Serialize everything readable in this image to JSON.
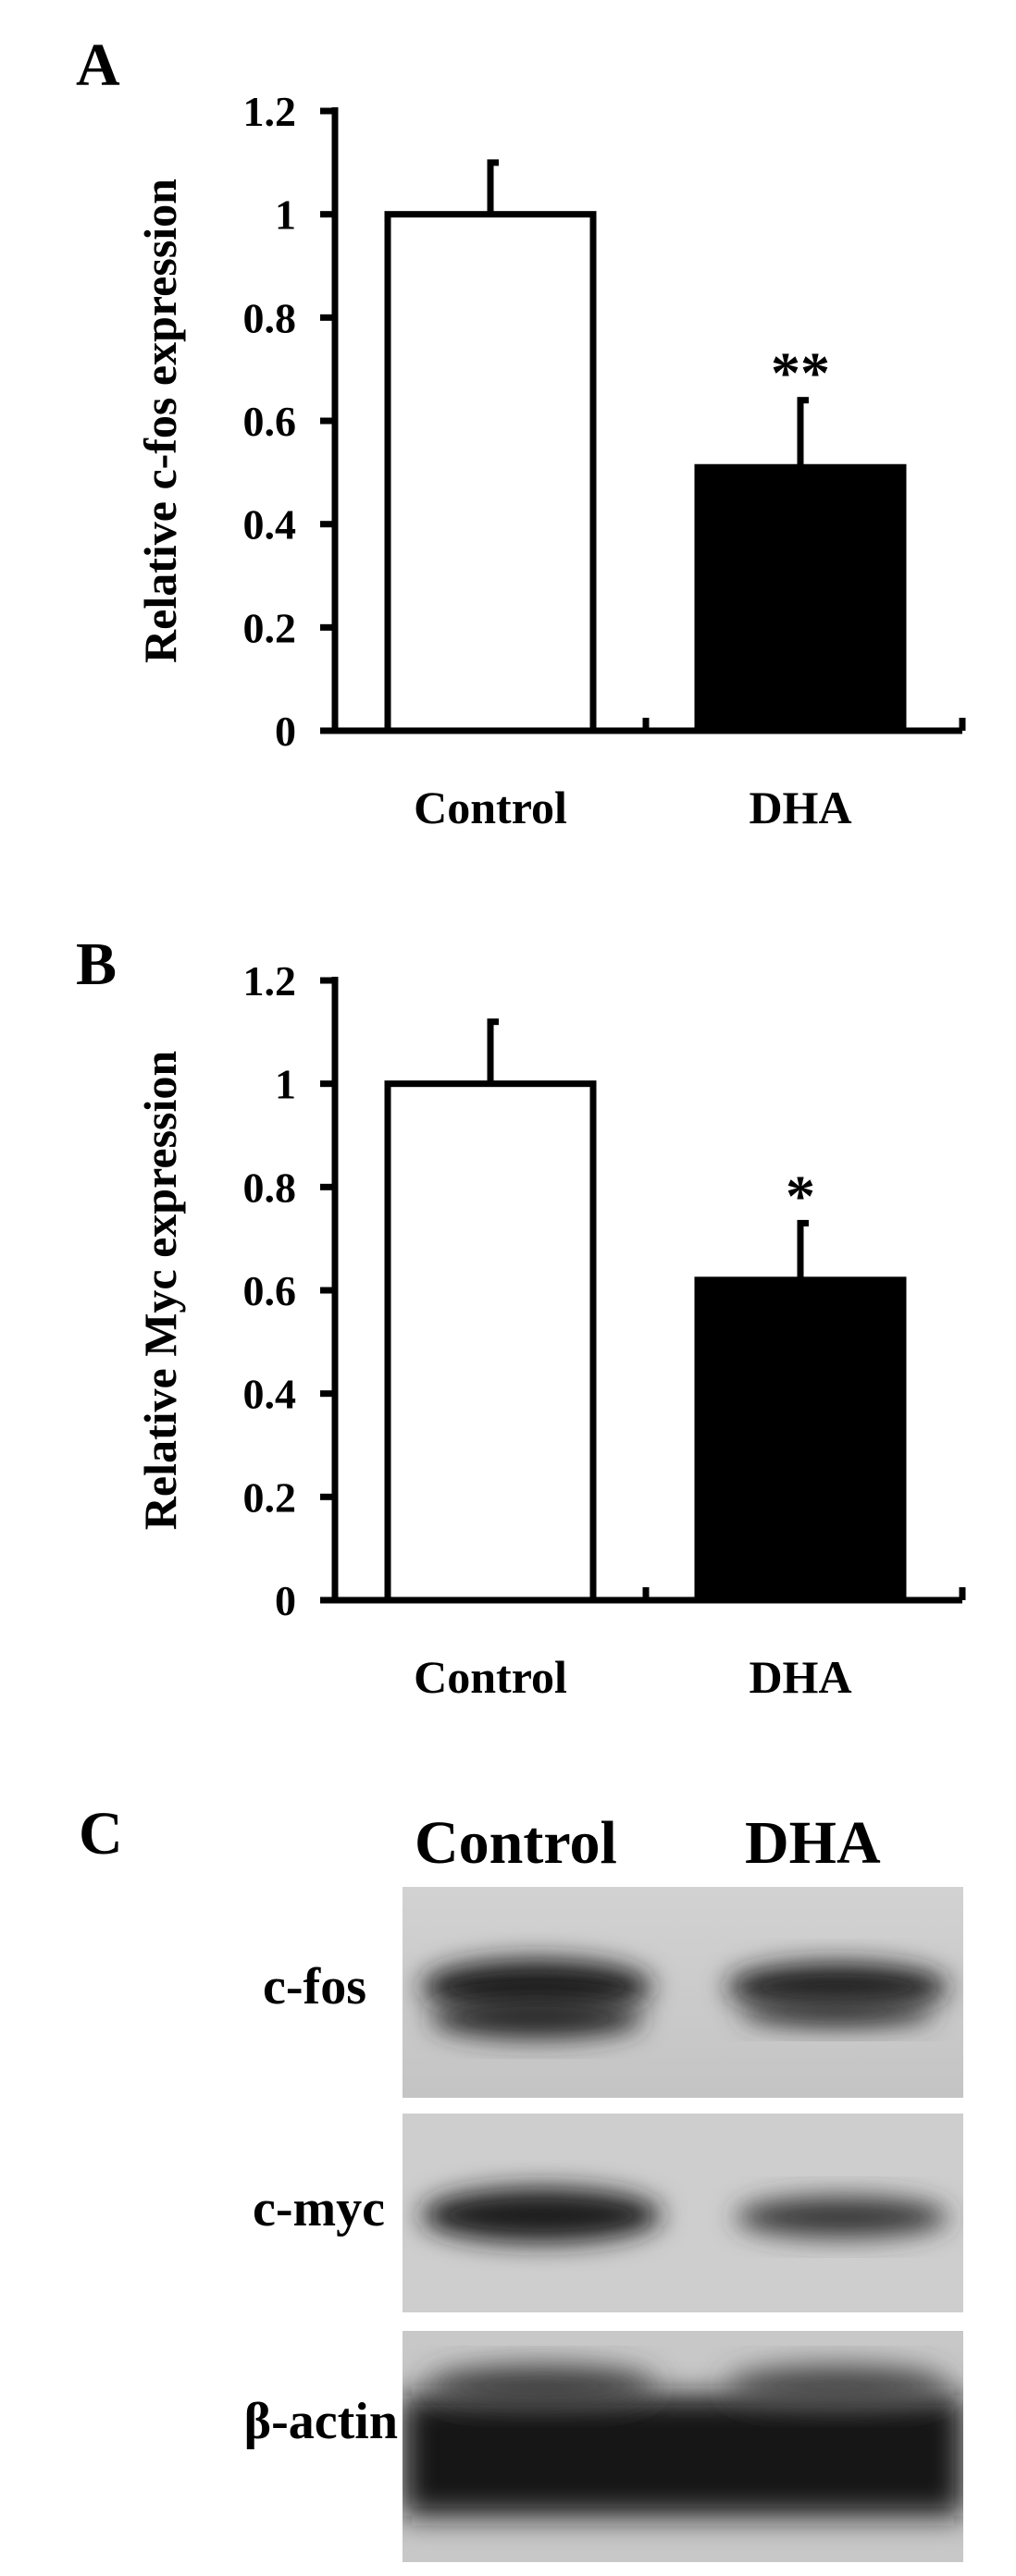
{
  "panels": {
    "a": {
      "letter": "A"
    },
    "b": {
      "letter": "B"
    },
    "c": {
      "letter": "C"
    }
  },
  "chart_data": [
    {
      "type": "bar",
      "ylabel": "Relative c-fos expression",
      "categories": [
        "Control",
        "DHA"
      ],
      "values": [
        1.0,
        0.51
      ],
      "errors": [
        0.1,
        0.13
      ],
      "significance": [
        "",
        "**"
      ],
      "fills": [
        "#ffffff",
        "#000000"
      ],
      "yticks": [
        "0",
        "0.2",
        "0.4",
        "0.6",
        "0.8",
        "1",
        "1.2"
      ],
      "ylim": [
        0,
        1.2
      ]
    },
    {
      "type": "bar",
      "ylabel": "Relative Myc expression",
      "categories": [
        "Control",
        "DHA"
      ],
      "values": [
        1.0,
        0.62
      ],
      "errors": [
        0.12,
        0.11
      ],
      "significance": [
        "",
        "*"
      ],
      "fills": [
        "#ffffff",
        "#000000"
      ],
      "yticks": [
        "0",
        "0.2",
        "0.4",
        "0.6",
        "0.8",
        "1",
        "1.2"
      ],
      "ylim": [
        0,
        1.2
      ]
    }
  ],
  "blot": {
    "columns": [
      "Control",
      "DHA"
    ],
    "rows": [
      "c-fos",
      "c-myc",
      "β-actin"
    ]
  }
}
